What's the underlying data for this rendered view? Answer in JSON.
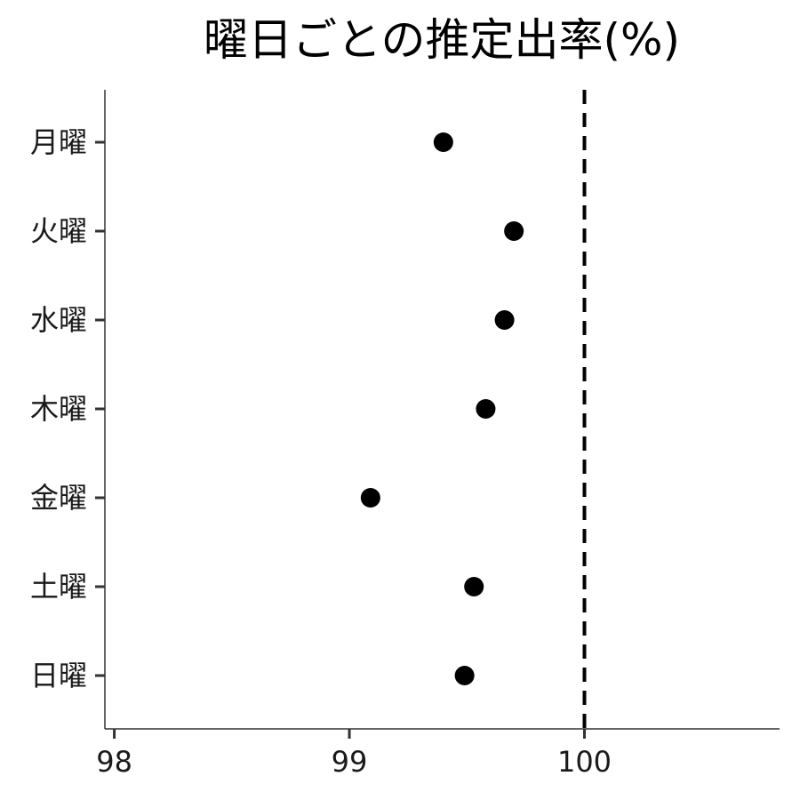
{
  "chart_data": {
    "type": "scatter",
    "title": "曜日ごとの推定出率(%)",
    "xlabel": "",
    "ylabel": "",
    "categories": [
      "月曜",
      "火曜",
      "水曜",
      "木曜",
      "金曜",
      "土曜",
      "日曜"
    ],
    "values": [
      99.4,
      99.7,
      99.66,
      99.58,
      99.09,
      99.53,
      99.49
    ],
    "xlim": [
      97.96,
      100.83
    ],
    "x_ticks": [
      98,
      99,
      100
    ],
    "x_tick_labels": [
      "98",
      "99",
      "100"
    ],
    "reference_line": {
      "x": 100,
      "style": "dashed"
    },
    "grid": false,
    "legend": "none",
    "point_color": "#000000"
  }
}
